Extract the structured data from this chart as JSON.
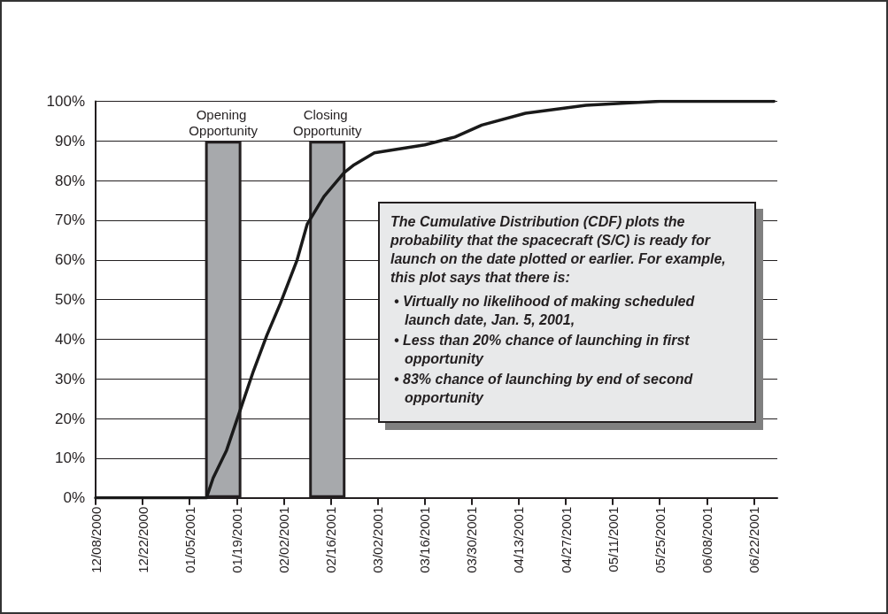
{
  "chart_data": {
    "type": "line",
    "xlim": [
      "2000-12-08",
      "2001-06-29"
    ],
    "xticks": [
      {
        "value": "2000-12-08",
        "label": "12/08/2000"
      },
      {
        "value": "2000-12-22",
        "label": "12/22/2000"
      },
      {
        "value": "2001-01-05",
        "label": "01/05/2001"
      },
      {
        "value": "2001-01-19",
        "label": "01/19/2001"
      },
      {
        "value": "2001-02-02",
        "label": "02/02/2001"
      },
      {
        "value": "2001-02-16",
        "label": "02/16/2001"
      },
      {
        "value": "2001-03-02",
        "label": "03/02/2001"
      },
      {
        "value": "2001-03-16",
        "label": "03/16/2001"
      },
      {
        "value": "2001-03-30",
        "label": "03/30/2001"
      },
      {
        "value": "2001-04-13",
        "label": "04/13/2001"
      },
      {
        "value": "2001-04-27",
        "label": "04/27/2001"
      },
      {
        "value": "2001-05-11",
        "label": "05/11/2001"
      },
      {
        "value": "2001-05-25",
        "label": "05/25/2001"
      },
      {
        "value": "2001-06-08",
        "label": "06/08/2001"
      },
      {
        "value": "2001-06-22",
        "label": "06/22/2001"
      }
    ],
    "ylim": [
      0,
      100
    ],
    "yticks": [
      {
        "value": 0,
        "label": "0%"
      },
      {
        "value": 10,
        "label": "10%"
      },
      {
        "value": 20,
        "label": "20%"
      },
      {
        "value": 30,
        "label": "30%"
      },
      {
        "value": 40,
        "label": "40%"
      },
      {
        "value": 50,
        "label": "50%"
      },
      {
        "value": 60,
        "label": "60%"
      },
      {
        "value": 70,
        "label": "70%"
      },
      {
        "value": 80,
        "label": "80%"
      },
      {
        "value": 90,
        "label": "90%"
      },
      {
        "value": 100,
        "label": "100%"
      }
    ],
    "grid": "y",
    "series": [
      {
        "type": "bar",
        "name": "Opening Opportunity",
        "color": "#a7a9ac",
        "x": [
          "2001-01-15"
        ],
        "values": [
          90
        ]
      },
      {
        "type": "bar",
        "name": "Closing Opportunity",
        "color": "#a7a9ac",
        "x": [
          "2001-02-15"
        ],
        "values": [
          90
        ]
      },
      {
        "color": "#1a1a1a",
        "x": [
          "2000-12-08",
          "2001-01-10",
          "2001-01-12",
          "2001-01-16",
          "2001-01-20",
          "2001-01-24",
          "2001-01-28",
          "2001-02-01",
          "2001-02-06",
          "2001-02-09",
          "2001-02-14",
          "2001-02-20",
          "2001-02-23",
          "2001-03-01",
          "2001-03-16",
          "2001-03-25",
          "2001-04-02",
          "2001-04-15",
          "2001-04-24",
          "2001-05-03",
          "2001-05-16",
          "2001-05-25",
          "2001-06-28"
        ],
        "values": [
          0,
          0,
          5,
          12,
          22,
          32,
          41,
          49,
          60,
          69,
          76,
          82,
          84,
          87,
          89,
          91,
          94,
          97,
          98,
          99,
          99.6,
          100,
          100
        ]
      }
    ],
    "annotations": [
      "The Cumulative Distribution (CDF) plots the probability that the spacecraft (S/C) is ready for launch on the date plotted or earlier. For example, this plot says that there is:",
      "• Virtually no likelihood of making scheduled launch date, Jan. 5, 2001,",
      "• Less than 20% chance of launching in first opportunity",
      "• 83% chance of launching by end of second opportunity"
    ]
  }
}
